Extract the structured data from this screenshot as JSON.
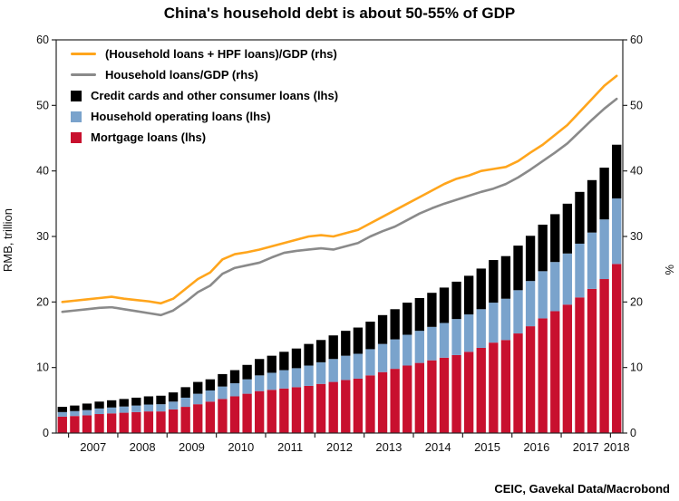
{
  "title": "China's household debt is about 50-55% of GDP",
  "source": "CEIC, Gavekal Data/Macrobond",
  "axes": {
    "left_label": "RMB, trillion",
    "right_label": "%",
    "yticks": [
      0,
      10,
      20,
      30,
      40,
      50,
      60
    ]
  },
  "legend": [
    {
      "label": "(Household loans + HPF loans)/GDP (rhs)",
      "type": "line",
      "color": "#FFA51C"
    },
    {
      "label": "Household loans/GDP (rhs)",
      "type": "line",
      "color": "#8A8A8A"
    },
    {
      "label": "Credit cards and other consumer loans (lhs)",
      "type": "square",
      "color": "#000000"
    },
    {
      "label": "Household operating loans (lhs)",
      "type": "square",
      "color": "#7AA3CC"
    },
    {
      "label": "Mortgage loans (lhs)",
      "type": "square",
      "color": "#C8102E"
    }
  ],
  "chart_data": {
    "type": "bar+line",
    "title": "China's household debt is about 50-55% of GDP",
    "ylabel_left": "RMB, trillion",
    "ylabel_right": "%",
    "ylim_left": [
      0,
      60
    ],
    "ylim_right": [
      0,
      60
    ],
    "grid": false,
    "legend_position": "top-left-inside",
    "x_years": [
      2007,
      2008,
      2009,
      2010,
      2011,
      2012,
      2013,
      2014,
      2015,
      2016,
      2017,
      2018
    ],
    "quarters": [
      "2006 Q4",
      "2007 Q1",
      "2007 Q2",
      "2007 Q3",
      "2007 Q4",
      "2008 Q1",
      "2008 Q2",
      "2008 Q3",
      "2008 Q4",
      "2009 Q1",
      "2009 Q2",
      "2009 Q3",
      "2009 Q4",
      "2010 Q1",
      "2010 Q2",
      "2010 Q3",
      "2010 Q4",
      "2011 Q1",
      "2011 Q2",
      "2011 Q3",
      "2011 Q4",
      "2012 Q1",
      "2012 Q2",
      "2012 Q3",
      "2012 Q4",
      "2013 Q1",
      "2013 Q2",
      "2013 Q3",
      "2013 Q4",
      "2014 Q1",
      "2014 Q2",
      "2014 Q3",
      "2014 Q4",
      "2015 Q1",
      "2015 Q2",
      "2015 Q3",
      "2015 Q4",
      "2016 Q1",
      "2016 Q2",
      "2016 Q3",
      "2016 Q4",
      "2017 Q1",
      "2017 Q2",
      "2017 Q3",
      "2017 Q4",
      "2018 Q1"
    ],
    "series": [
      {
        "name": "Mortgage loans (lhs)",
        "type": "bar",
        "axis": "lhs",
        "color": "#C8102E",
        "values": [
          2.5,
          2.6,
          2.7,
          2.9,
          3.0,
          3.1,
          3.2,
          3.3,
          3.3,
          3.6,
          4.0,
          4.4,
          4.8,
          5.2,
          5.6,
          6.0,
          6.4,
          6.6,
          6.8,
          7.0,
          7.2,
          7.5,
          7.8,
          8.1,
          8.3,
          8.8,
          9.3,
          9.8,
          10.3,
          10.7,
          11.1,
          11.5,
          11.9,
          12.4,
          13.0,
          13.8,
          14.2,
          15.2,
          16.3,
          17.5,
          18.6,
          19.6,
          20.7,
          22.0,
          23.5,
          25.8
        ]
      },
      {
        "name": "Household operating loans (lhs)",
        "type": "bar",
        "axis": "lhs",
        "color": "#7AA3CC",
        "values": [
          0.7,
          0.75,
          0.8,
          0.85,
          0.9,
          0.95,
          1.0,
          1.05,
          1.1,
          1.2,
          1.4,
          1.6,
          1.7,
          1.9,
          2.0,
          2.2,
          2.4,
          2.6,
          2.8,
          2.9,
          3.1,
          3.3,
          3.5,
          3.7,
          3.8,
          4.0,
          4.3,
          4.5,
          4.7,
          4.9,
          5.1,
          5.3,
          5.5,
          5.7,
          5.9,
          6.1,
          6.3,
          6.6,
          6.9,
          7.2,
          7.5,
          7.8,
          8.2,
          8.6,
          9.1,
          10.0
        ]
      },
      {
        "name": "Credit cards and other consumer loans (lhs)",
        "type": "bar",
        "axis": "lhs",
        "color": "#000000",
        "values": [
          0.8,
          0.85,
          1.0,
          1.05,
          1.1,
          1.15,
          1.2,
          1.25,
          1.3,
          1.4,
          1.6,
          1.8,
          1.7,
          1.9,
          2.0,
          2.2,
          2.5,
          2.6,
          2.8,
          3.0,
          3.3,
          3.4,
          3.6,
          3.8,
          4.0,
          4.2,
          4.4,
          4.6,
          4.9,
          5.0,
          5.2,
          5.4,
          5.7,
          5.9,
          6.2,
          6.5,
          6.5,
          6.8,
          6.9,
          7.1,
          7.3,
          7.6,
          7.9,
          8.0,
          7.9,
          8.2
        ]
      },
      {
        "name": "Household loans/GDP (rhs)",
        "type": "line",
        "axis": "rhs",
        "color": "#8A8A8A",
        "values": [
          18.5,
          18.7,
          18.9,
          19.1,
          19.2,
          18.9,
          18.6,
          18.3,
          18.0,
          18.7,
          20.0,
          21.5,
          22.5,
          24.3,
          25.2,
          25.6,
          26.0,
          26.8,
          27.5,
          27.8,
          28.0,
          28.2,
          28.0,
          28.5,
          29.0,
          30.0,
          30.8,
          31.5,
          32.5,
          33.5,
          34.3,
          35.0,
          35.6,
          36.2,
          36.8,
          37.3,
          38.0,
          39.0,
          40.2,
          41.5,
          42.8,
          44.2,
          46.0,
          47.8,
          49.5,
          51.0
        ]
      },
      {
        "name": "(Household loans + HPF loans)/GDP (rhs)",
        "type": "line",
        "axis": "rhs",
        "color": "#FFA51C",
        "values": [
          20.0,
          20.2,
          20.4,
          20.6,
          20.8,
          20.5,
          20.3,
          20.1,
          19.8,
          20.5,
          22.0,
          23.5,
          24.5,
          26.5,
          27.3,
          27.6,
          28.0,
          28.5,
          29.0,
          29.5,
          30.0,
          30.2,
          30.0,
          30.5,
          31.0,
          32.0,
          33.0,
          34.0,
          35.0,
          36.0,
          37.0,
          38.0,
          38.8,
          39.3,
          40.0,
          40.3,
          40.6,
          41.5,
          42.8,
          44.0,
          45.5,
          47.0,
          49.0,
          51.0,
          53.0,
          54.5
        ]
      }
    ]
  }
}
